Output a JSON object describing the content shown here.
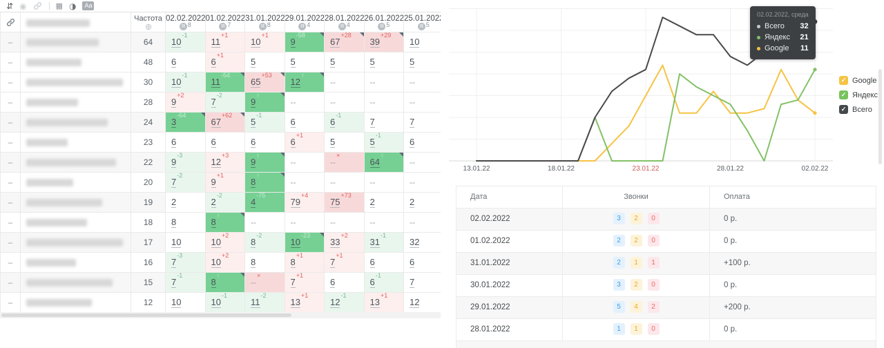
{
  "toolbar": {
    "icons": [
      {
        "name": "sort-icon",
        "disabled": false
      },
      {
        "name": "target-icon",
        "disabled": true
      },
      {
        "name": "link-icon",
        "disabled": true
      },
      {
        "name": "divider"
      },
      {
        "name": "table-icon",
        "disabled": false
      },
      {
        "name": "contrast-icon",
        "disabled": false
      },
      {
        "name": "text-size-icon",
        "disabled": false,
        "label": "Aa"
      }
    ]
  },
  "left_table": {
    "attach_icon": "link-icon",
    "frequency_header": "Частота",
    "frequency_icon": "globe-icon",
    "date_engine_icon": "yandex-icon",
    "handle_placeholder": "–",
    "date_columns": [
      {
        "date": "02.02.2022",
        "engines": "8"
      },
      {
        "date": "01.02.2022",
        "engines": "7"
      },
      {
        "date": "31.01.2022",
        "engines": "8"
      },
      {
        "date": "29.01.2022",
        "engines": "4"
      },
      {
        "date": "28.01.2022",
        "engines": "4"
      },
      {
        "date": "26.01.2022",
        "engines": "5"
      },
      {
        "date": "25.01.2022",
        "engines": "5"
      }
    ],
    "rows": [
      {
        "frequency": "64",
        "zebra": true,
        "blur_width": 105,
        "cells": [
          {
            "v": "10",
            "d": "-1",
            "t": "g1"
          },
          {
            "v": "11",
            "d": "+1",
            "t": "r1"
          },
          {
            "v": "10",
            "d": "+1",
            "t": "r1"
          },
          {
            "v": "9",
            "d": "-58",
            "t": "g3",
            "fl": true
          },
          {
            "v": "67",
            "d": "+28",
            "t": "r2",
            "fl": true
          },
          {
            "v": "39",
            "d": "+29",
            "t": "r2",
            "fl": true
          },
          {
            "v": "10"
          }
        ]
      },
      {
        "frequency": "48",
        "zebra": false,
        "blur_width": 80,
        "cells": [
          {
            "v": "6"
          },
          {
            "v": "6",
            "d": "+1",
            "t": "r1"
          },
          {
            "v": "5"
          },
          {
            "v": "5"
          },
          {
            "v": "5"
          },
          {
            "v": "5"
          },
          {
            "v": "5"
          }
        ]
      },
      {
        "frequency": "30",
        "zebra": false,
        "blur_width": 140,
        "cells": [
          {
            "v": "10",
            "d": "-1",
            "t": "g1"
          },
          {
            "v": "11",
            "d": "-54",
            "t": "g3",
            "fl": true
          },
          {
            "v": "65",
            "d": "+53",
            "t": "r2",
            "fl": true
          },
          {
            "v": "12",
            "d": "↑",
            "t": "g3",
            "fl": true
          },
          {
            "v": "--"
          },
          {
            "v": "--"
          },
          {
            "v": "--"
          }
        ]
      },
      {
        "frequency": "28",
        "zebra": false,
        "blur_width": 75,
        "cells": [
          {
            "v": "9",
            "d": "+2",
            "t": "r1"
          },
          {
            "v": "7",
            "d": "-2",
            "t": "g1"
          },
          {
            "v": "9",
            "d": "↑",
            "t": "g3",
            "fl": true
          },
          {
            "v": "--"
          },
          {
            "v": "--"
          },
          {
            "v": "--"
          },
          {
            "v": "--"
          }
        ]
      },
      {
        "frequency": "24",
        "zebra": true,
        "blur_width": 118,
        "cells": [
          {
            "v": "3",
            "d": "-64",
            "t": "g3",
            "fl": true
          },
          {
            "v": "67",
            "d": "+62",
            "t": "r2",
            "fl": true
          },
          {
            "v": "5",
            "d": "-1",
            "t": "g1"
          },
          {
            "v": "6"
          },
          {
            "v": "6",
            "d": "-1",
            "t": "g1"
          },
          {
            "v": "7"
          },
          {
            "v": "7"
          }
        ]
      },
      {
        "frequency": "23",
        "zebra": false,
        "blur_width": 60,
        "cells": [
          {
            "v": "6"
          },
          {
            "v": "6"
          },
          {
            "v": "6"
          },
          {
            "v": "6",
            "d": "+1",
            "t": "r1"
          },
          {
            "v": "5"
          },
          {
            "v": "5",
            "d": "-1",
            "t": "g1"
          },
          {
            "v": "6"
          }
        ]
      },
      {
        "frequency": "22",
        "zebra": true,
        "blur_width": 130,
        "cells": [
          {
            "v": "9",
            "d": "-3",
            "t": "g1"
          },
          {
            "v": "12",
            "d": "+3",
            "t": "r1"
          },
          {
            "v": "9",
            "d": "↑",
            "t": "g3",
            "fl": true
          },
          {
            "v": "--"
          },
          {
            "v": "--",
            "d": "×",
            "t": "r2"
          },
          {
            "v": "64",
            "d": "↑",
            "t": "g3",
            "fl": true
          },
          {
            "v": "--"
          }
        ]
      },
      {
        "frequency": "20",
        "zebra": false,
        "blur_width": 68,
        "cells": [
          {
            "v": "7",
            "d": "-2",
            "t": "g1"
          },
          {
            "v": "9",
            "d": "+1",
            "t": "r1"
          },
          {
            "v": "8",
            "d": "↑",
            "t": "g3",
            "fl": true
          },
          {
            "v": "--"
          },
          {
            "v": "--"
          },
          {
            "v": "--"
          },
          {
            "v": "--"
          }
        ]
      },
      {
        "frequency": "19",
        "zebra": true,
        "blur_width": 110,
        "cells": [
          {
            "v": "2"
          },
          {
            "v": "2",
            "d": "-2",
            "t": "g1"
          },
          {
            "v": "4",
            "d": "-75",
            "t": "g3"
          },
          {
            "v": "79",
            "d": "+4",
            "t": "r1"
          },
          {
            "v": "75",
            "d": "+73",
            "t": "r2"
          },
          {
            "v": "2"
          },
          {
            "v": "2"
          }
        ]
      },
      {
        "frequency": "18",
        "zebra": false,
        "blur_width": 88,
        "cells": [
          {
            "v": "8"
          },
          {
            "v": "8",
            "d": "↑",
            "t": "g3",
            "fl": true
          },
          {
            "v": "--"
          },
          {
            "v": "--"
          },
          {
            "v": "--"
          },
          {
            "v": "--"
          },
          {
            "v": "--"
          }
        ]
      },
      {
        "frequency": "17",
        "zebra": true,
        "blur_width": 140,
        "cells": [
          {
            "v": "10"
          },
          {
            "v": "10",
            "d": "+2",
            "t": "r1"
          },
          {
            "v": "8",
            "d": "-2",
            "t": "g1"
          },
          {
            "v": "10",
            "d": "-23",
            "t": "g3",
            "fl": true
          },
          {
            "v": "33",
            "d": "+2",
            "t": "r1"
          },
          {
            "v": "31",
            "d": "-1",
            "t": "g1"
          },
          {
            "v": "32"
          }
        ]
      },
      {
        "frequency": "16",
        "zebra": false,
        "blur_width": 72,
        "cells": [
          {
            "v": "7",
            "d": "-3",
            "t": "g1"
          },
          {
            "v": "10",
            "d": "+2",
            "t": "r1"
          },
          {
            "v": "8"
          },
          {
            "v": "8",
            "d": "+1",
            "t": "r1"
          },
          {
            "v": "7",
            "d": "+1",
            "t": "r1"
          },
          {
            "v": "6"
          },
          {
            "v": "6"
          }
        ]
      },
      {
        "frequency": "15",
        "zebra": true,
        "blur_width": 125,
        "cells": [
          {
            "v": "7",
            "d": "-1",
            "t": "g1"
          },
          {
            "v": "8",
            "d": "↑",
            "t": "g3",
            "fl": true
          },
          {
            "v": "--",
            "d": "×",
            "t": "r2"
          },
          {
            "v": "7",
            "d": "+1",
            "t": "r1"
          },
          {
            "v": "6"
          },
          {
            "v": "6",
            "d": "-1",
            "t": "g1"
          },
          {
            "v": "7"
          }
        ]
      },
      {
        "frequency": "12",
        "zebra": false,
        "blur_width": 95,
        "cells": [
          {
            "v": "10"
          },
          {
            "v": "10",
            "d": "-1",
            "t": "g1"
          },
          {
            "v": "11",
            "d": "-2",
            "t": "g1"
          },
          {
            "v": "13",
            "d": "+1",
            "t": "r1"
          },
          {
            "v": "12",
            "d": "-1",
            "t": "g1"
          },
          {
            "v": "13",
            "d": "+1",
            "t": "r1"
          },
          {
            "v": "12"
          }
        ]
      }
    ]
  },
  "chart_data": {
    "type": "line",
    "x": [
      "13.01.22",
      "14.01.22",
      "15.01.22",
      "16.01.22",
      "17.01.22",
      "18.01.22",
      "19.01.22",
      "20.01.22",
      "21.01.22",
      "22.01.22",
      "23.01.22",
      "24.01.22",
      "25.01.22",
      "26.01.22",
      "27.01.22",
      "28.01.22",
      "29.01.22",
      "30.01.22",
      "31.01.22",
      "01.02.22",
      "02.02.22"
    ],
    "series": [
      {
        "name": "Google",
        "color": "#f6c344",
        "values": [
          0,
          0,
          0,
          0,
          0,
          0,
          0,
          0,
          4,
          8,
          15,
          22,
          11,
          11,
          16,
          11,
          11,
          12,
          21,
          14,
          11
        ]
      },
      {
        "name": "Яндекс",
        "color": "#83c167",
        "values": [
          0,
          0,
          0,
          0,
          0,
          0,
          0,
          10,
          0,
          0,
          0,
          0,
          20,
          17,
          15,
          13,
          7,
          0,
          13,
          14,
          21
        ]
      },
      {
        "name": "Всего",
        "color": "#4a4a4a",
        "values": [
          0,
          0,
          0,
          0,
          0,
          0,
          0,
          10,
          16,
          19,
          21,
          33,
          31,
          29,
          29,
          24,
          22,
          25,
          28,
          30,
          32
        ]
      }
    ],
    "tick_labels": [
      "13.01.22",
      "18.01.22",
      "23.01.22",
      "28.01.22",
      "02.02.22"
    ],
    "weekend_tick": "23.01.22",
    "weekend_color": "#cd5c5c",
    "ylim": [
      0,
      35
    ],
    "grid": true,
    "legend_position": "right"
  },
  "tooltip": {
    "title": "02.02.2022, среда",
    "rows": [
      {
        "name": "Всего",
        "value": "32",
        "color": "#c7cbce"
      },
      {
        "name": "Яндекс",
        "value": "21",
        "color": "#83c167"
      },
      {
        "name": "Google",
        "value": "11",
        "color": "#f6c344"
      }
    ]
  },
  "legend": [
    {
      "label": "Google",
      "color": "#f6c344"
    },
    {
      "label": "Яндекс",
      "color": "#77c35c"
    },
    {
      "label": "Всего",
      "color": "#45494c"
    }
  ],
  "calls_table": {
    "headers": [
      "Дата",
      "Звонки",
      "Оплата"
    ],
    "rows": [
      {
        "date": "02.02.2022",
        "calls": [
          "3",
          "2",
          "0"
        ],
        "payment": "0 р."
      },
      {
        "date": "01.02.2022",
        "calls": [
          "2",
          "2",
          "0"
        ],
        "payment": "0 р."
      },
      {
        "date": "31.01.2022",
        "calls": [
          "2",
          "1",
          "1"
        ],
        "payment": "+100 р."
      },
      {
        "date": "30.01.2022",
        "calls": [
          "3",
          "2",
          "0"
        ],
        "payment": "0 р."
      },
      {
        "date": "29.01.2022",
        "calls": [
          "5",
          "4",
          "2"
        ],
        "payment": "+200 р."
      },
      {
        "date": "28.01.2022",
        "calls": [
          "1",
          "1",
          "0"
        ],
        "payment": "0 р."
      }
    ]
  }
}
